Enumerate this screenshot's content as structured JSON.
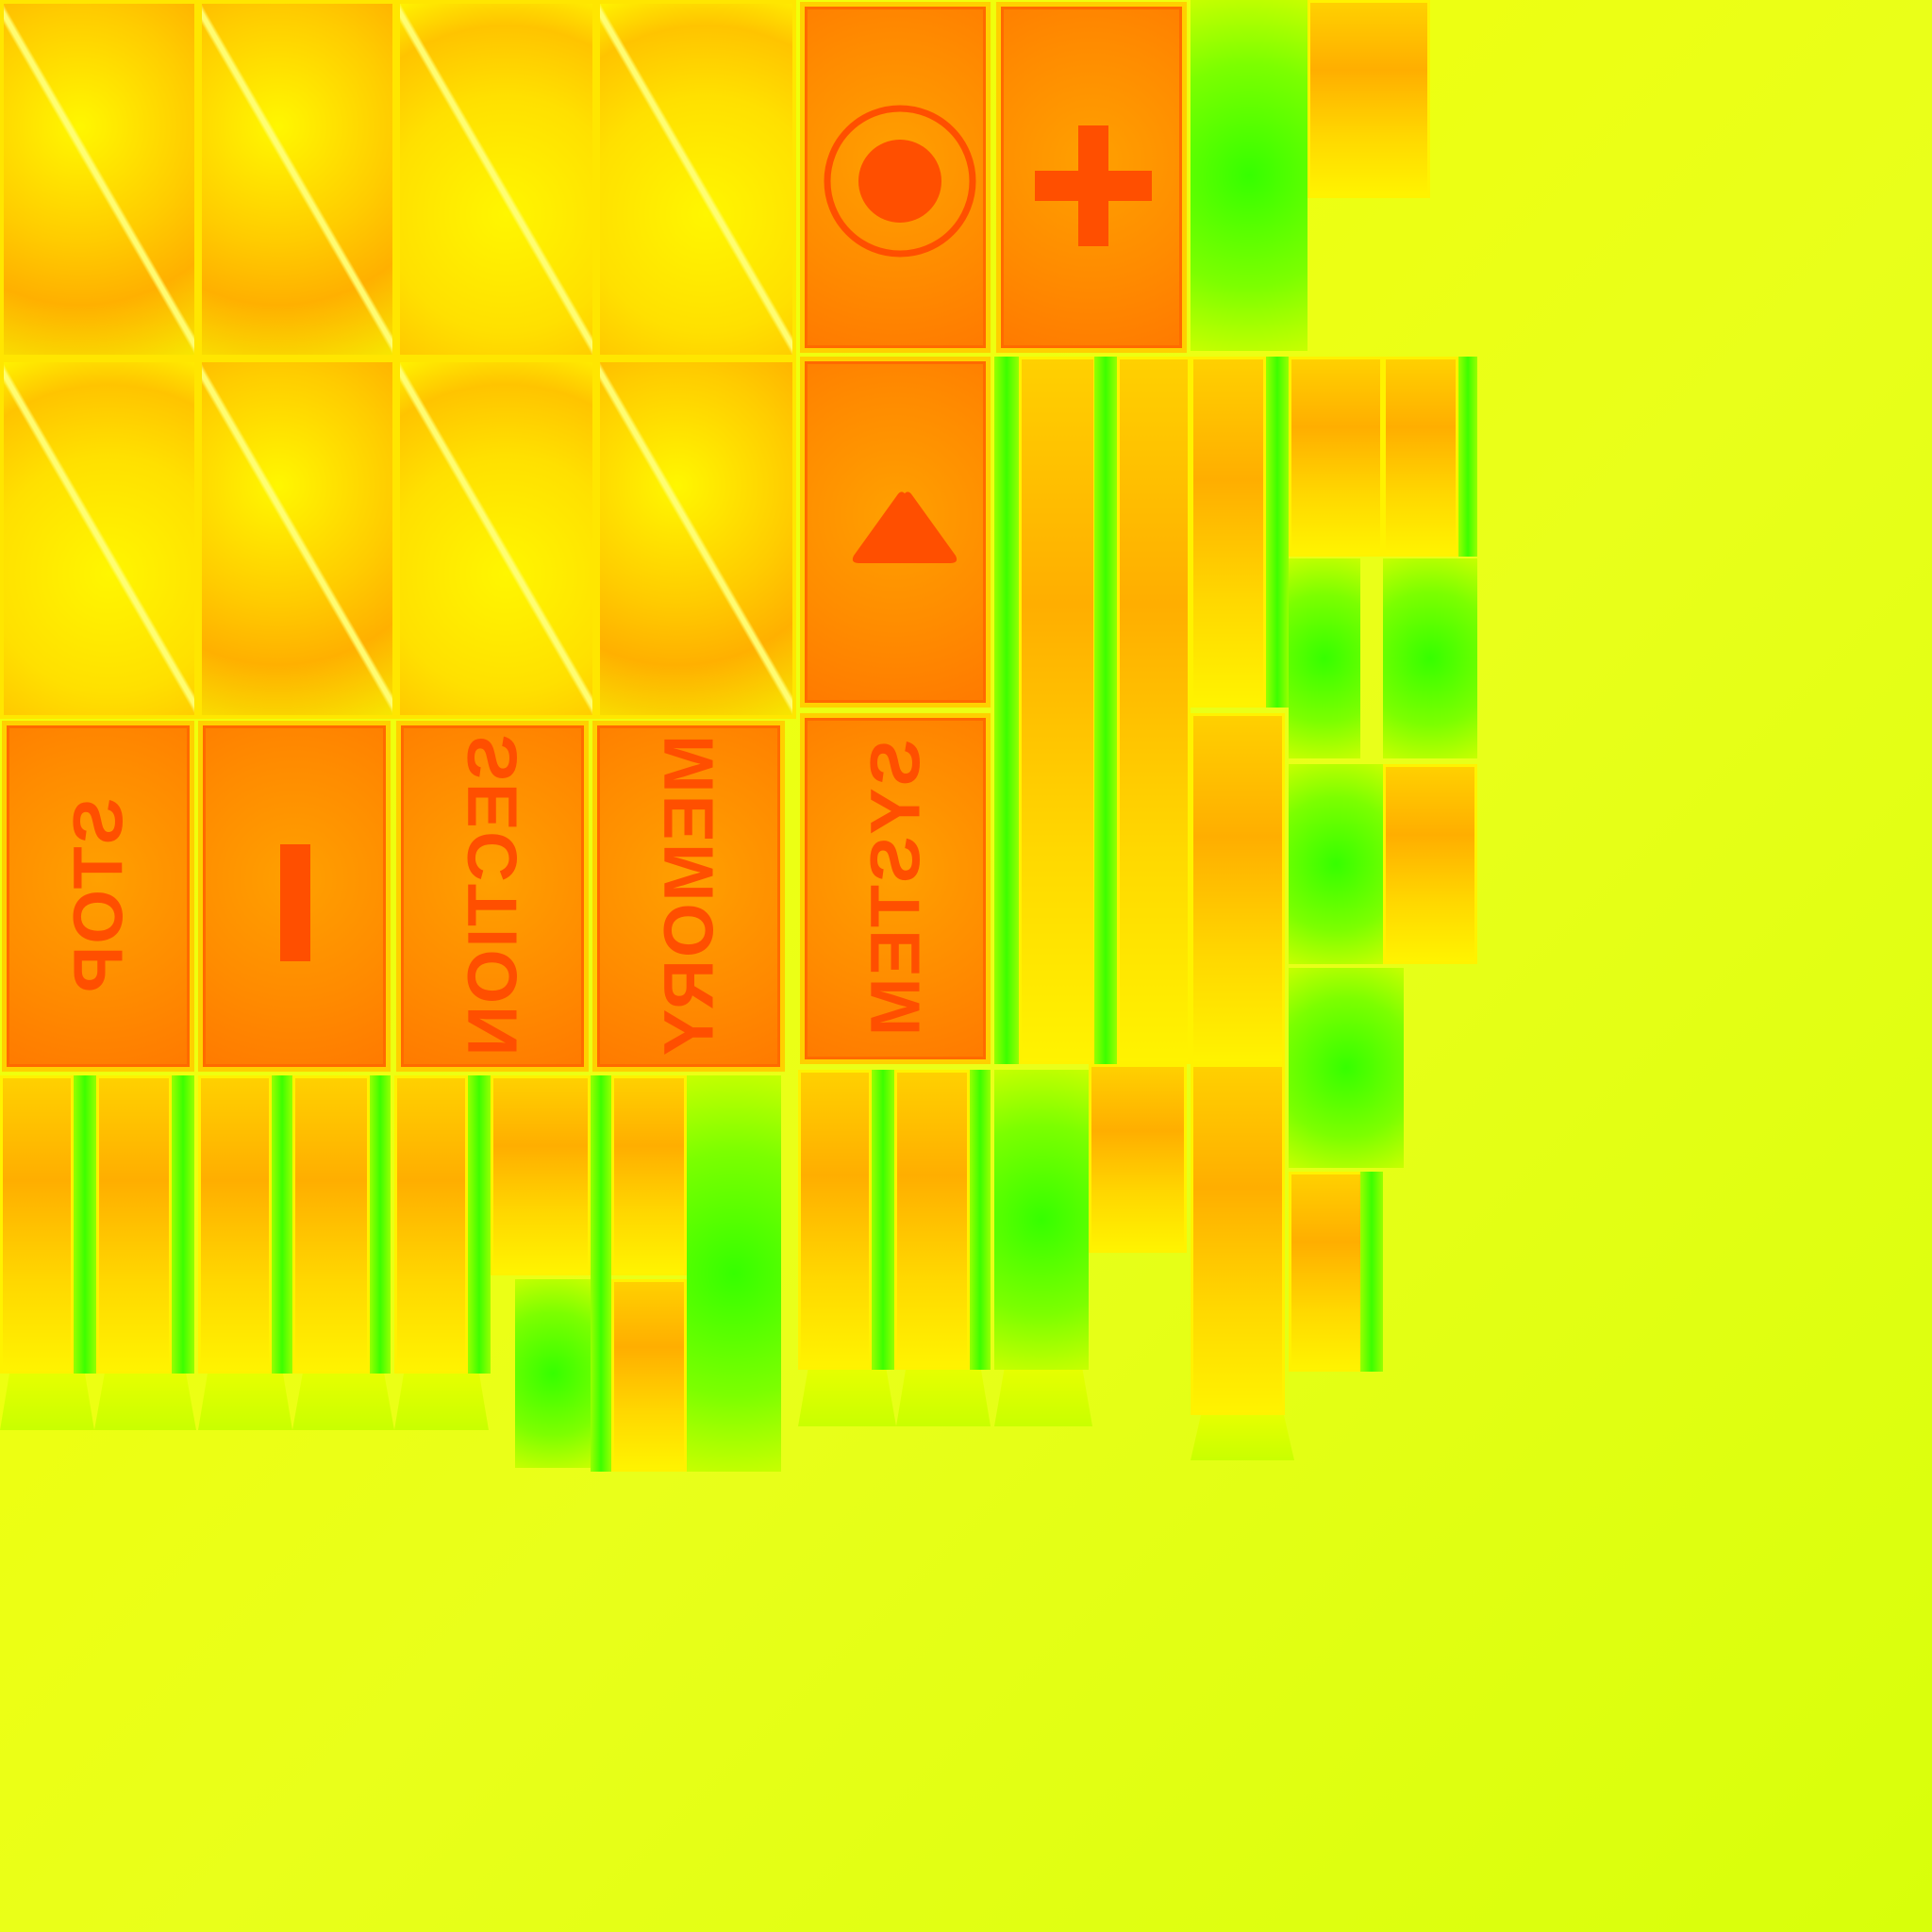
{
  "texture": {
    "buttons": [
      {
        "id": "record",
        "icon": "record-icon"
      },
      {
        "id": "plus",
        "icon": "plus-icon"
      },
      {
        "id": "play",
        "icon": "triangle-icon"
      },
      {
        "id": "stop",
        "label": "STOP"
      },
      {
        "id": "minus",
        "icon": "minus-icon"
      },
      {
        "id": "section",
        "label": "SECTION"
      },
      {
        "id": "memory",
        "label": "MEMORY"
      },
      {
        "id": "system",
        "label": "SYSTEM"
      }
    ]
  },
  "colors": {
    "symbol": "#ff4f00",
    "button_fill": "#ff8c00",
    "tile_yellow": "#ffe600",
    "strip_green": "#3cff00"
  }
}
